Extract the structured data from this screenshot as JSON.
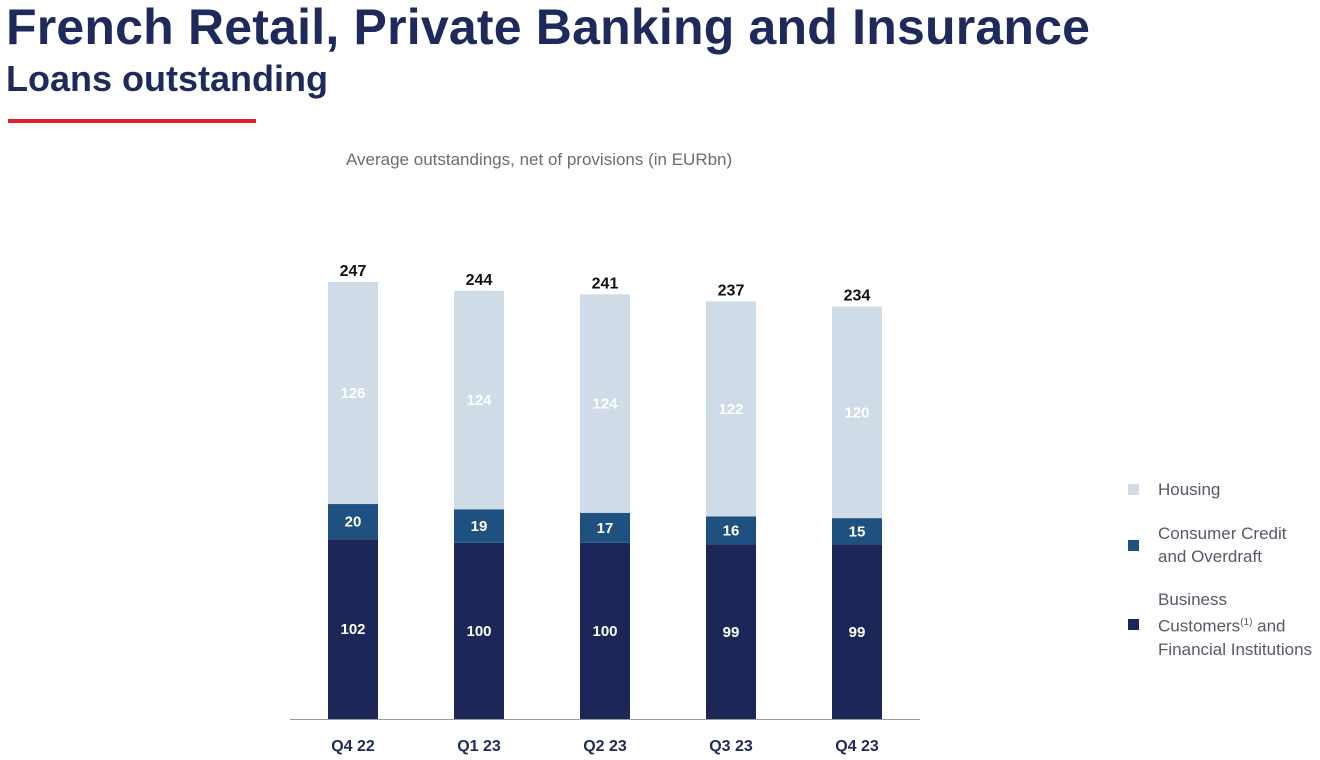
{
  "header": {
    "title": "French Retail, Private Banking and Insurance",
    "subtitle": "Loans outstanding"
  },
  "colors": {
    "navy": "#1c2758",
    "mid_blue": "#1e5180",
    "light_blue": "#d0dbe8",
    "accent_red": "#e1222b",
    "axis": "#9a9a9a"
  },
  "chart_data": {
    "type": "bar",
    "stacked": true,
    "title": "Average outstandings, net of provisions (in EURbn)",
    "categories": [
      "Q4 22",
      "Q1 23",
      "Q2 23",
      "Q3 23",
      "Q4 23"
    ],
    "series": [
      {
        "name": "Business Customers(1) and Financial Institutions",
        "color": "#1c2758",
        "values": [
          102,
          100,
          100,
          99,
          99
        ]
      },
      {
        "name": "Consumer Credit and Overdraft",
        "color": "#1e5180",
        "values": [
          20,
          19,
          17,
          16,
          15
        ]
      },
      {
        "name": "Housing",
        "color": "#d0dbe8",
        "values": [
          126,
          124,
          124,
          122,
          120
        ]
      }
    ],
    "totals": [
      247,
      244,
      241,
      237,
      234
    ],
    "ylim": [
      0,
      250
    ],
    "xlabel": "",
    "ylabel": "",
    "legend_position": "right"
  },
  "legend": {
    "housing": "Housing",
    "consumer_line1": "Consumer Credit",
    "consumer_line2": "and Overdraft",
    "business_line1": "Business",
    "business_line2a": "Customers",
    "business_sup": "(1)",
    "business_line2b": " and",
    "business_line3": "Financial Institutions"
  }
}
